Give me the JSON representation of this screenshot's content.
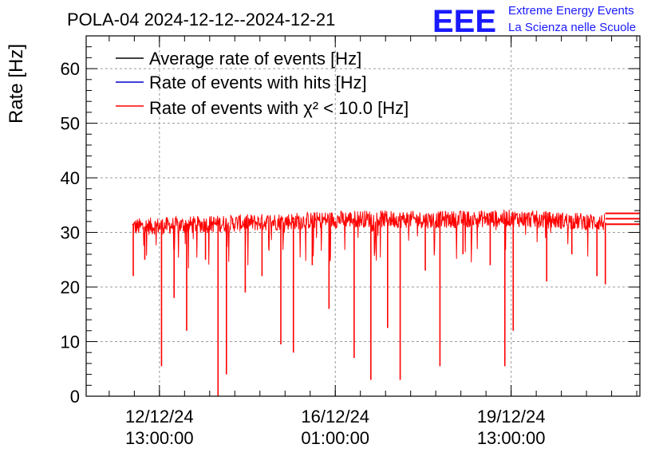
{
  "chart_data": {
    "type": "line",
    "title": "POLA-04 2024-12-12--2024-12-21",
    "ylabel": "Rate [Hz]",
    "xlabel": "",
    "ylim": [
      0,
      66
    ],
    "yticks": [
      0,
      10,
      20,
      30,
      40,
      50,
      60
    ],
    "xlim": [
      "2024-12-11T02:00:00",
      "2024-12-22T02:30:00"
    ],
    "xticks": [
      {
        "date": "12/12/24",
        "time": "13:00:00",
        "t": "2024-12-12T13:00:00"
      },
      {
        "date": "16/12/24",
        "time": "01:00:00",
        "t": "2024-12-16T01:00:00"
      },
      {
        "date": "19/12/24",
        "time": "13:00:00",
        "t": "2024-12-19T13:00:00"
      }
    ],
    "grid": true,
    "legend_position": "top-left",
    "series": [
      {
        "name": "Average rate of events [Hz]",
        "color": "#000000",
        "values": []
      },
      {
        "name": "Rate of events with hits [Hz]",
        "color": "#0000cc",
        "values": []
      },
      {
        "name": "Rate of events with χ² < 10.0 [Hz]",
        "color": "#ff0000",
        "baseline": [
          {
            "t": "2024-12-12T00:00:00",
            "y": 31
          },
          {
            "t": "2024-12-13T12:00:00",
            "y": 31.5
          },
          {
            "t": "2024-12-15T00:00:00",
            "y": 32
          },
          {
            "t": "2024-12-16T12:00:00",
            "y": 32.5
          },
          {
            "t": "2024-12-18T00:00:00",
            "y": 32.3
          },
          {
            "t": "2024-12-19T12:00:00",
            "y": 32.6
          },
          {
            "t": "2024-12-21T00:00:00",
            "y": 32
          },
          {
            "t": "2024-12-21T10:00:00",
            "y": 31.8
          }
        ],
        "dips": [
          {
            "t": "2024-12-12T00:30:00",
            "y": 22
          },
          {
            "t": "2024-12-12T06:00:00",
            "y": 25
          },
          {
            "t": "2024-12-12T14:00:00",
            "y": 5.5
          },
          {
            "t": "2024-12-12T20:00:00",
            "y": 18
          },
          {
            "t": "2024-12-13T02:00:00",
            "y": 12
          },
          {
            "t": "2024-12-13T11:00:00",
            "y": 25
          },
          {
            "t": "2024-12-13T17:00:00",
            "y": 0
          },
          {
            "t": "2024-12-13T21:00:00",
            "y": 4
          },
          {
            "t": "2024-12-14T06:00:00",
            "y": 19
          },
          {
            "t": "2024-12-14T14:00:00",
            "y": 22
          },
          {
            "t": "2024-12-14T23:00:00",
            "y": 9.5
          },
          {
            "t": "2024-12-15T05:00:00",
            "y": 8
          },
          {
            "t": "2024-12-15T14:00:00",
            "y": 24
          },
          {
            "t": "2024-12-15T22:00:00",
            "y": 16
          },
          {
            "t": "2024-12-16T10:00:00",
            "y": 7
          },
          {
            "t": "2024-12-16T18:00:00",
            "y": 3
          },
          {
            "t": "2024-12-17T02:00:00",
            "y": 12.5
          },
          {
            "t": "2024-12-17T08:00:00",
            "y": 3
          },
          {
            "t": "2024-12-17T20:00:00",
            "y": 23
          },
          {
            "t": "2024-12-18T03:00:00",
            "y": 5.5
          },
          {
            "t": "2024-12-18T14:00:00",
            "y": 26
          },
          {
            "t": "2024-12-19T03:00:00",
            "y": 24
          },
          {
            "t": "2024-12-19T10:00:00",
            "y": 5.5
          },
          {
            "t": "2024-12-19T14:00:00",
            "y": 12
          },
          {
            "t": "2024-12-20T06:00:00",
            "y": 21
          },
          {
            "t": "2024-12-20T18:00:00",
            "y": 26
          },
          {
            "t": "2024-12-21T06:00:00",
            "y": 22
          },
          {
            "t": "2024-12-21T10:00:00",
            "y": 20.5
          }
        ],
        "tail_lines_y": [
          33.5,
          32.5,
          31.5
        ]
      }
    ]
  },
  "logo": {
    "text": "EEE",
    "line1": "Extreme Energy Events",
    "line2": "La Scienza nelle Scuole",
    "color": "#1a1aff"
  }
}
